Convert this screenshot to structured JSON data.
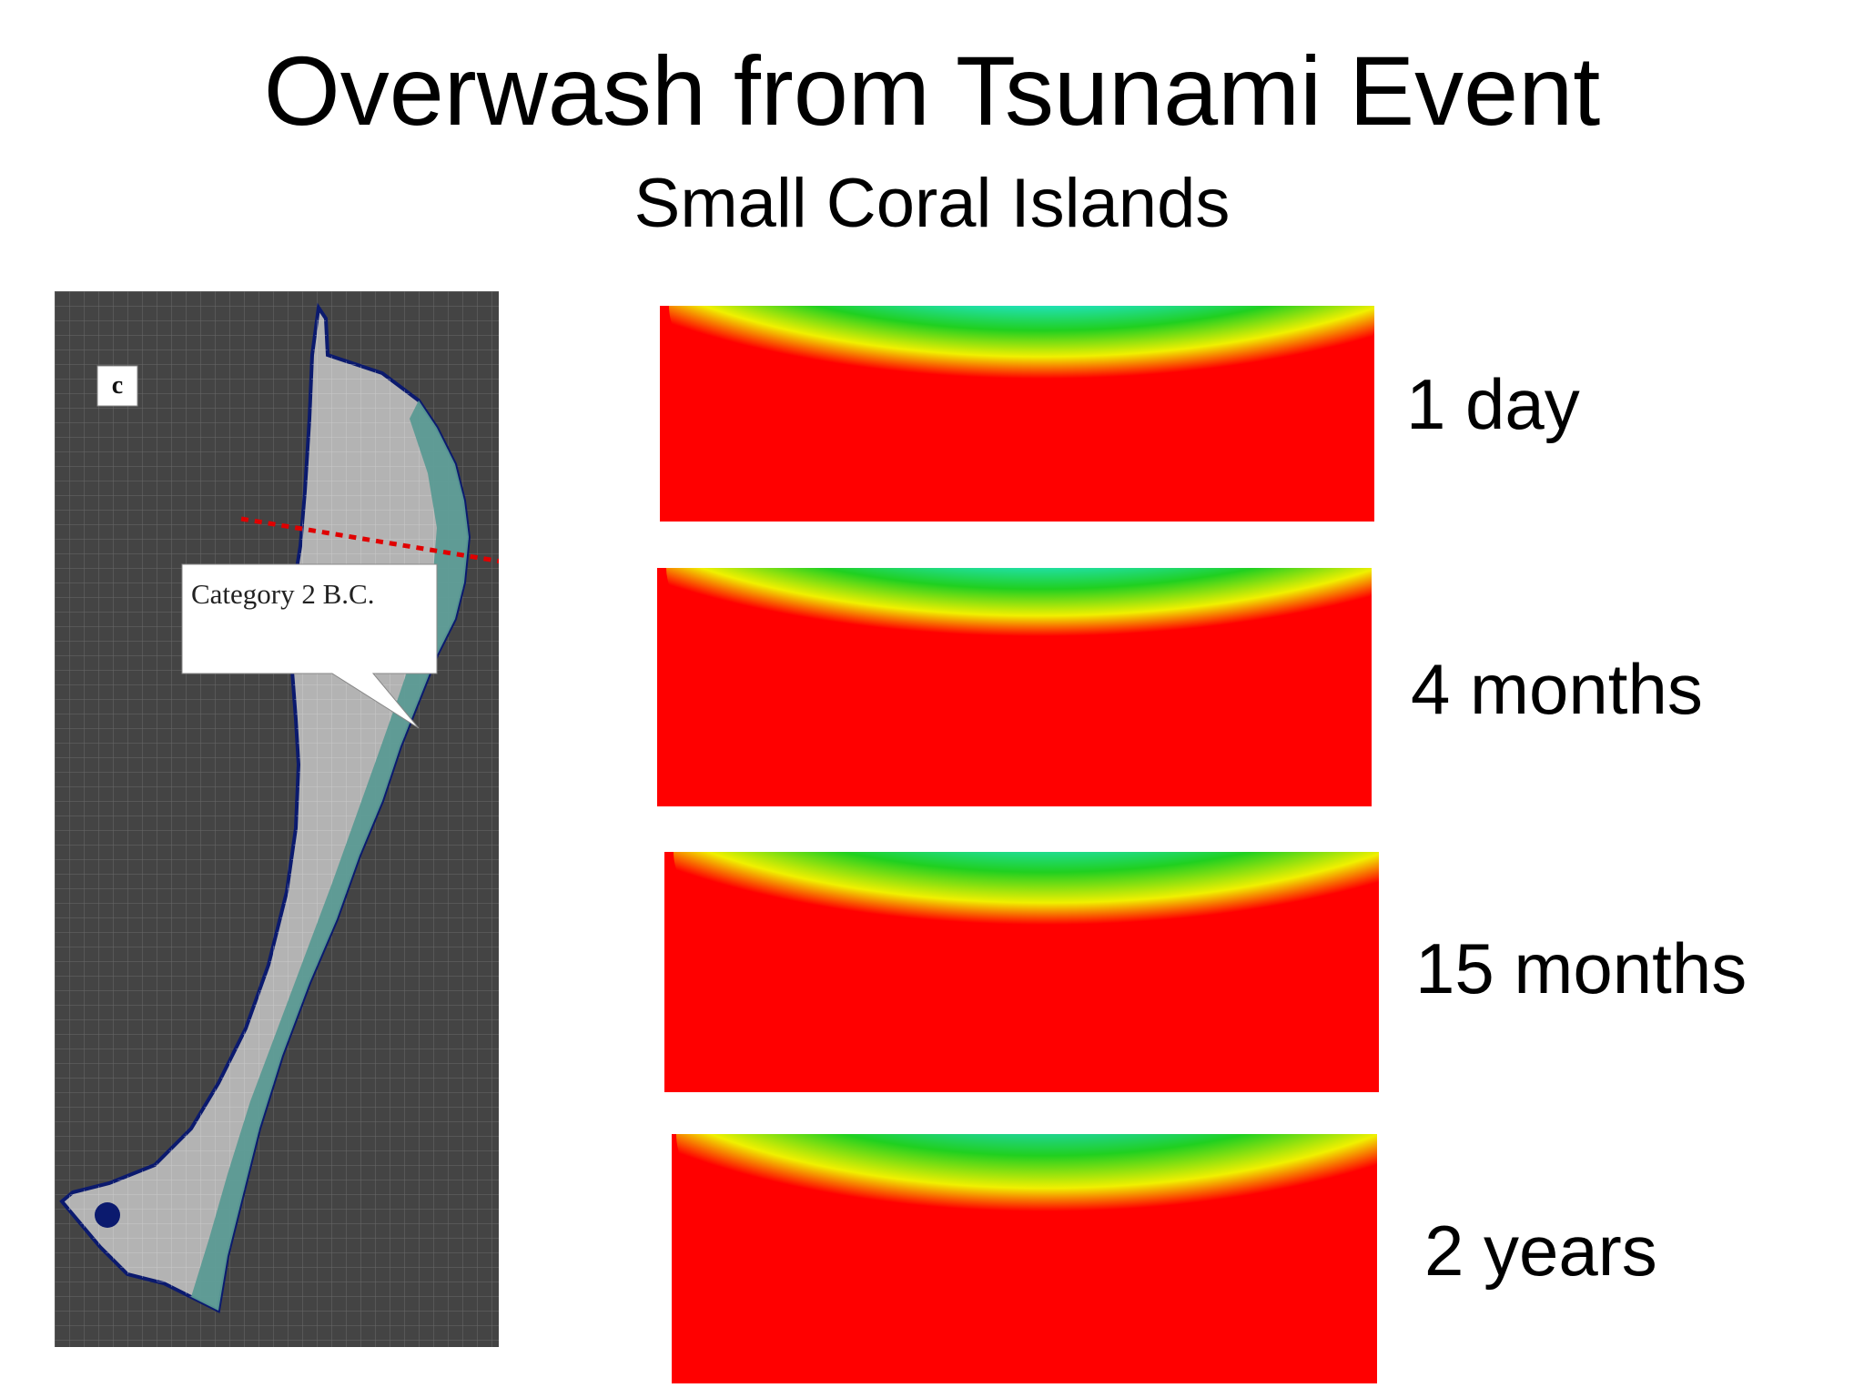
{
  "header": {
    "title": "Overwash from Tsunami Event",
    "subtitle": "Small Coral Islands"
  },
  "map": {
    "panel_letter": "c",
    "callout_label": "Category 2 B.C."
  },
  "sections": [
    {
      "label": "1 day"
    },
    {
      "label": "4 months"
    },
    {
      "label": "15 months"
    },
    {
      "label": "2 years"
    }
  ],
  "colors": {
    "background_map": "#444444",
    "island": "#b3b3b3",
    "beach": "#5b9a94",
    "outline": "#0b1a6e",
    "transect": "#e00000",
    "lens_deep": "#0020c8",
    "lens_cyan": "#20f0f0",
    "lens_green": "#20d020",
    "lens_yellow": "#f0f000",
    "saline": "#ff0000"
  }
}
